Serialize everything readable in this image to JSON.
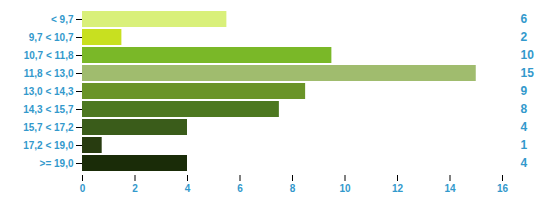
{
  "chart_data": {
    "type": "bar",
    "orientation": "horizontal",
    "categories": [
      "< 9,7",
      "9,7 < 10,7",
      "10,7 < 11,8",
      "11,8 < 13,0",
      "13,0 < 14,3",
      "14,3 < 15,7",
      "15,7 < 17,2",
      "17,2 < 19,0",
      ">= 19,0"
    ],
    "values": [
      5.5,
      1.5,
      9.5,
      15.0,
      8.5,
      7.5,
      4.0,
      0.75,
      4.0
    ],
    "value_labels": [
      "6",
      "2",
      "10",
      "15",
      "9",
      "8",
      "4",
      "1",
      "4"
    ],
    "data_labels": true,
    "colors": [
      "#d9f07a",
      "#c8e020",
      "#7ab828",
      "#a0bc6e",
      "#6a9428",
      "#4d7820",
      "#3a5c1a",
      "#283c10",
      "#1a2c08"
    ],
    "xlim": [
      0,
      16
    ],
    "xticks": [
      0,
      2,
      4,
      6,
      8,
      10,
      12,
      14,
      16
    ],
    "grid": false
  }
}
